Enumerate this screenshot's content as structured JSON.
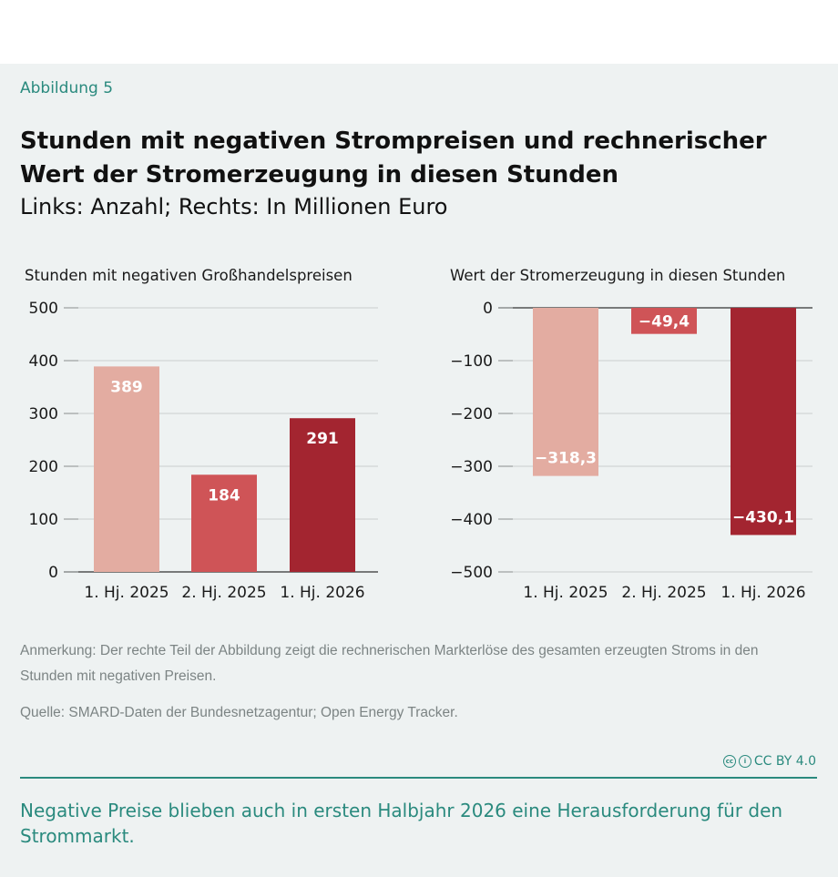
{
  "figure_label": "Abbildung 5",
  "title": "Stunden mit negativen Strompreisen und rechnerischer Wert der Stromerzeugung in diesen Stunden",
  "subtitle": "Links: Anzahl; Rechts: In Millionen Euro",
  "note": "Anmerkung: Der rechte Teil der Abbildung zeigt die rechnerischen Markterlöse des gesamten erzeugten Stroms in den Stunden mit negativen Preisen.",
  "source": "Quelle: SMARD-Daten der Bundesnetzagentur; Open Energy Tracker.",
  "license": "CC BY 4.0",
  "takeaway": "Negative Preise blieben auch in ersten Halbjahr 2026 eine Herausforderung für den Strommarkt.",
  "colors": {
    "bar1": "#e3aca1",
    "bar2": "#cf5457",
    "bar3": "#a32530",
    "accent": "#2a8a7e"
  },
  "chart_data": [
    {
      "type": "bar",
      "title": "Stunden mit negativen Großhandelspreisen",
      "categories": [
        "1. Hj. 2025",
        "2. Hj. 2025",
        "1. Hj. 2026"
      ],
      "values": [
        389,
        184,
        291
      ],
      "value_labels": [
        "389",
        "184",
        "291"
      ],
      "ylim": [
        0,
        500
      ],
      "yticks": [
        0,
        100,
        200,
        300,
        400,
        500
      ],
      "ytick_labels": [
        "0",
        "100",
        "200",
        "300",
        "400",
        "500"
      ],
      "grid": true
    },
    {
      "type": "bar",
      "title": "Wert der Stromerzeugung in diesen Stunden",
      "categories": [
        "1. Hj. 2025",
        "2. Hj. 2025",
        "1. Hj. 2026"
      ],
      "values": [
        -318.3,
        -49.4,
        -430.1
      ],
      "value_labels": [
        "−318,3",
        "−49,4",
        "−430,1"
      ],
      "ylim": [
        -500,
        0
      ],
      "yticks": [
        0,
        -100,
        -200,
        -300,
        -400,
        -500
      ],
      "ytick_labels": [
        "0",
        "−100",
        "−200",
        "−300",
        "−400",
        "−500"
      ],
      "grid": true
    }
  ]
}
